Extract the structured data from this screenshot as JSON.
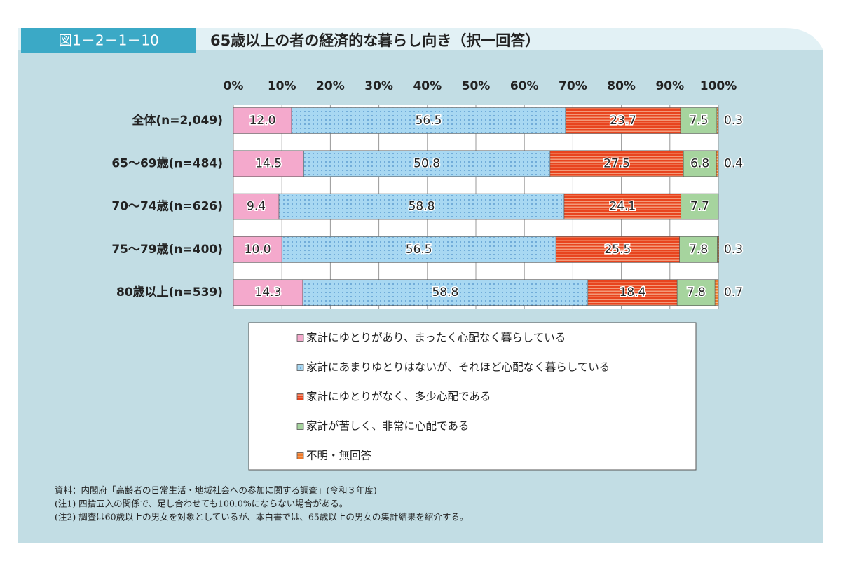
{
  "figure_number": "図1－2－1－10",
  "notes": [
    "資料：内閣府「高齢者の日常生活・地域社会への参加に関する調査」(令和３年度)",
    "(注1) 四捨五入の関係で、足し合わせても100.0%にならない場合がある。",
    "(注2) 調査は60歳以上の男女を対象としているが、本白書では、65歳以上の男女の集計結果を紹介する。"
  ],
  "chart_data": {
    "type": "stacked_barh",
    "title": "65歳以上の者の経済的な暮らし向き（択一回答）",
    "categories": [
      "全体(n=2,049)",
      "65～69歳(n=484)",
      "70～74歳(n=626)",
      "75～79歳(n=400)",
      "80歳以上(n=539)"
    ],
    "series": [
      {
        "name": "家計にゆとりがあり、まったく心配なく暮らしている",
        "color": "#f4a9cc",
        "pattern": "solid",
        "values": [
          12.0,
          14.5,
          9.4,
          10.0,
          14.3
        ],
        "value_labels": [
          "12.0",
          "14.5",
          "9.4",
          "10.0",
          "14.3"
        ]
      },
      {
        "name": "家計にあまりゆとりはないが、それほど心配なく暮らしている",
        "color": "#a8d8f2",
        "pattern": "dots",
        "values": [
          56.5,
          50.8,
          58.8,
          56.5,
          58.8
        ],
        "value_labels": [
          "56.5",
          "50.8",
          "58.8",
          "56.5",
          "58.8"
        ]
      },
      {
        "name": "家計にゆとりがなく、多少心配である",
        "color": "#e8441e",
        "pattern": "stripes",
        "values": [
          23.7,
          27.5,
          24.1,
          25.5,
          18.4
        ],
        "value_labels": [
          "23.7",
          "27.5",
          "24.1",
          "25.5",
          "18.4"
        ]
      },
      {
        "name": "家計が苦しく、非常に心配である",
        "color": "#a6d49e",
        "pattern": "solid",
        "values": [
          7.5,
          6.8,
          7.7,
          7.8,
          7.8
        ],
        "value_labels": [
          "7.5",
          "6.8",
          "7.7",
          "7.8",
          "7.8"
        ]
      },
      {
        "name": "不明・無回答",
        "color": "#f07a2a",
        "pattern": "stripes",
        "values": [
          0.3,
          0.4,
          null,
          0.3,
          0.7
        ],
        "value_labels": [
          "0.3",
          "0.4",
          null,
          "0.3",
          "0.7"
        ]
      }
    ],
    "xlim": [
      0,
      100
    ],
    "xticks": [
      {
        "value": 0,
        "label": "0%"
      },
      {
        "value": 10,
        "label": "10%"
      },
      {
        "value": 20,
        "label": "20%"
      },
      {
        "value": 30,
        "label": "30%"
      },
      {
        "value": 40,
        "label": "40%"
      },
      {
        "value": 50,
        "label": "50%"
      },
      {
        "value": 60,
        "label": "60%"
      },
      {
        "value": 70,
        "label": "70%"
      },
      {
        "value": 80,
        "label": "80%"
      },
      {
        "value": 90,
        "label": "90%"
      },
      {
        "value": 100,
        "label": "100%"
      }
    ],
    "grid": true
  }
}
